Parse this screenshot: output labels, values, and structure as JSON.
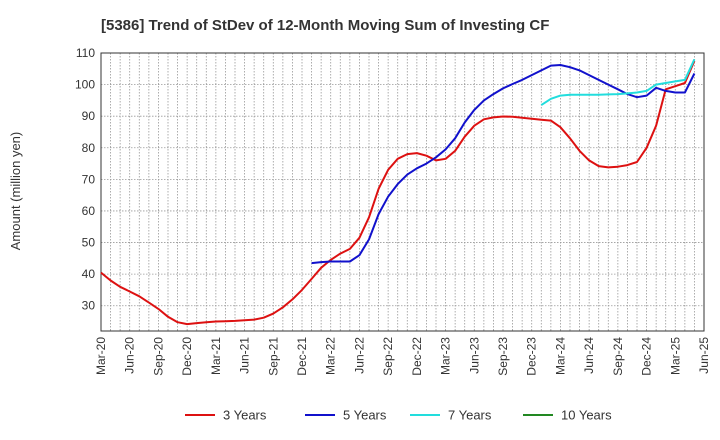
{
  "chart_data": {
    "type": "line",
    "title": "[5386]  Trend of StDev of 12-Month Moving Sum of Investing CF",
    "xlabel": "",
    "ylabel": "Amount (million yen)",
    "ylim": [
      22,
      110
    ],
    "yticks": [
      30,
      40,
      50,
      60,
      70,
      80,
      90,
      100,
      110
    ],
    "xlim": [
      "2020-03",
      "2025-06"
    ],
    "xticks": [
      "Mar-20",
      "Jun-20",
      "Sep-20",
      "Dec-20",
      "Mar-21",
      "Jun-21",
      "Sep-21",
      "Dec-21",
      "Mar-22",
      "Jun-22",
      "Sep-22",
      "Dec-22",
      "Mar-23",
      "Jun-23",
      "Sep-23",
      "Dec-23",
      "Mar-24",
      "Jun-24",
      "Sep-24",
      "Dec-24",
      "Mar-25",
      "Jun-25"
    ],
    "grid": true,
    "legend_position": "bottom",
    "series": [
      {
        "name": "3 Years",
        "color": "#dd1111",
        "points": [
          [
            "2020-03",
            40.5
          ],
          [
            "2020-04",
            38
          ],
          [
            "2020-05",
            36
          ],
          [
            "2020-06",
            34.5
          ],
          [
            "2020-07",
            33
          ],
          [
            "2020-08",
            31
          ],
          [
            "2020-09",
            29
          ],
          [
            "2020-10",
            26.5
          ],
          [
            "2020-11",
            24.8
          ],
          [
            "2020-12",
            24.2
          ],
          [
            "2021-01",
            24.5
          ],
          [
            "2021-02",
            24.8
          ],
          [
            "2021-03",
            25
          ],
          [
            "2021-04",
            25.1
          ],
          [
            "2021-05",
            25.2
          ],
          [
            "2021-06",
            25.4
          ],
          [
            "2021-07",
            25.6
          ],
          [
            "2021-08",
            26.2
          ],
          [
            "2021-09",
            27.5
          ],
          [
            "2021-10",
            29.5
          ],
          [
            "2021-11",
            32
          ],
          [
            "2021-12",
            35
          ],
          [
            "2022-01",
            38.5
          ],
          [
            "2022-02",
            42
          ],
          [
            "2022-03",
            44.5
          ],
          [
            "2022-04",
            46.5
          ],
          [
            "2022-05",
            48
          ],
          [
            "2022-06",
            51.5
          ],
          [
            "2022-07",
            58
          ],
          [
            "2022-08",
            67
          ],
          [
            "2022-09",
            73
          ],
          [
            "2022-10",
            76.5
          ],
          [
            "2022-11",
            78
          ],
          [
            "2022-12",
            78.3
          ],
          [
            "2023-01",
            77.5
          ],
          [
            "2023-02",
            76
          ],
          [
            "2023-03",
            76.5
          ],
          [
            "2023-04",
            79
          ],
          [
            "2023-05",
            83.5
          ],
          [
            "2023-06",
            87
          ],
          [
            "2023-07",
            89
          ],
          [
            "2023-08",
            89.6
          ],
          [
            "2023-09",
            89.9
          ],
          [
            "2023-10",
            89.8
          ],
          [
            "2023-11",
            89.5
          ],
          [
            "2023-12",
            89.2
          ],
          [
            "2024-01",
            88.9
          ],
          [
            "2024-02",
            88.6
          ],
          [
            "2024-03",
            86.5
          ],
          [
            "2024-04",
            83
          ],
          [
            "2024-05",
            79
          ],
          [
            "2024-06",
            76
          ],
          [
            "2024-07",
            74.2
          ],
          [
            "2024-08",
            73.8
          ],
          [
            "2024-09",
            74
          ],
          [
            "2024-10",
            74.5
          ],
          [
            "2024-11",
            75.5
          ],
          [
            "2024-12",
            80
          ],
          [
            "2025-01",
            87
          ],
          [
            "2025-02",
            98.5
          ],
          [
            "2025-03",
            99.5
          ],
          [
            "2025-04",
            100.5
          ],
          [
            "2025-05",
            107.5
          ]
        ]
      },
      {
        "name": "5 Years",
        "color": "#1111cc",
        "points": [
          [
            "2022-01",
            43.5
          ],
          [
            "2022-02",
            43.8
          ],
          [
            "2022-03",
            44
          ],
          [
            "2022-04",
            44
          ],
          [
            "2022-05",
            44
          ],
          [
            "2022-06",
            46
          ],
          [
            "2022-07",
            51
          ],
          [
            "2022-08",
            59
          ],
          [
            "2022-09",
            64.5
          ],
          [
            "2022-10",
            68.5
          ],
          [
            "2022-11",
            71.5
          ],
          [
            "2022-12",
            73.5
          ],
          [
            "2023-01",
            75
          ],
          [
            "2023-02",
            77
          ],
          [
            "2023-03",
            79.5
          ],
          [
            "2023-04",
            83
          ],
          [
            "2023-05",
            88
          ],
          [
            "2023-06",
            92
          ],
          [
            "2023-07",
            95
          ],
          [
            "2023-08",
            97
          ],
          [
            "2023-09",
            98.8
          ],
          [
            "2023-10",
            100.2
          ],
          [
            "2023-11",
            101.5
          ],
          [
            "2023-12",
            103
          ],
          [
            "2024-01",
            104.5
          ],
          [
            "2024-02",
            106
          ],
          [
            "2024-03",
            106.2
          ],
          [
            "2024-04",
            105.5
          ],
          [
            "2024-05",
            104.5
          ],
          [
            "2024-06",
            103
          ],
          [
            "2024-07",
            101.5
          ],
          [
            "2024-08",
            100
          ],
          [
            "2024-09",
            98.5
          ],
          [
            "2024-10",
            97
          ],
          [
            "2024-11",
            96
          ],
          [
            "2024-12",
            96.5
          ],
          [
            "2025-01",
            99
          ],
          [
            "2025-02",
            98
          ],
          [
            "2025-03",
            97.5
          ],
          [
            "2025-04",
            97.5
          ],
          [
            "2025-05",
            103.5
          ]
        ]
      },
      {
        "name": "7 Years",
        "color": "#22dddd",
        "points": [
          [
            "2024-01",
            93.5
          ],
          [
            "2024-02",
            95.5
          ],
          [
            "2024-03",
            96.5
          ],
          [
            "2024-04",
            96.8
          ],
          [
            "2024-05",
            96.8
          ],
          [
            "2024-06",
            96.8
          ],
          [
            "2024-07",
            96.8
          ],
          [
            "2024-08",
            96.9
          ],
          [
            "2024-09",
            97
          ],
          [
            "2024-10",
            97.2
          ],
          [
            "2024-11",
            97.5
          ],
          [
            "2024-12",
            98
          ],
          [
            "2025-01",
            100
          ],
          [
            "2025-02",
            100.5
          ],
          [
            "2025-03",
            101
          ],
          [
            "2025-04",
            101.5
          ],
          [
            "2025-05",
            108
          ]
        ]
      },
      {
        "name": "10 Years",
        "color": "#228822",
        "points": []
      }
    ]
  }
}
